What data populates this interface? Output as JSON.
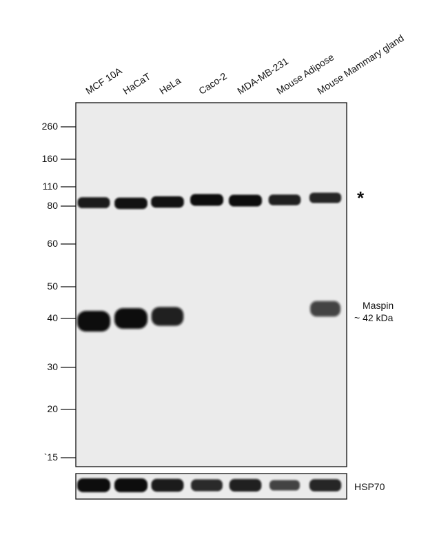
{
  "lanes": [
    {
      "name": "MCF 10A",
      "band80": 0.85,
      "band40": 1.0,
      "hsp70": 1.0
    },
    {
      "name": "HaCaT",
      "band80": 0.95,
      "band40": 1.0,
      "hsp70": 1.0
    },
    {
      "name": "HeLa",
      "band80": 0.95,
      "band40": 0.8,
      "hsp70": 0.85
    },
    {
      "name": "Caco-2",
      "band80": 1.0,
      "band40": 0,
      "hsp70": 0.7
    },
    {
      "name": "MDA-MB-231",
      "band80": 1.0,
      "band40": 0,
      "hsp70": 0.8
    },
    {
      "name": "Mouse Adipose",
      "band80": 0.8,
      "band40": 0,
      "hsp70": 0.45
    },
    {
      "name": "Mouse Mammary gland",
      "band80": 0.75,
      "band40": 0.45,
      "hsp70": 0.75
    }
  ],
  "mw_markers": [
    "260",
    "160",
    "110",
    "80",
    "60",
    "50",
    "40",
    "30",
    "20",
    "`15"
  ],
  "annotations": {
    "star": "*",
    "maspin_line1": "Maspin",
    "maspin_line2": "~ 42 kDa",
    "hsp70": "HSP70"
  },
  "colors": {
    "membrane": "#ebebeb",
    "band": "#0c0c0c",
    "border": "#111111"
  }
}
